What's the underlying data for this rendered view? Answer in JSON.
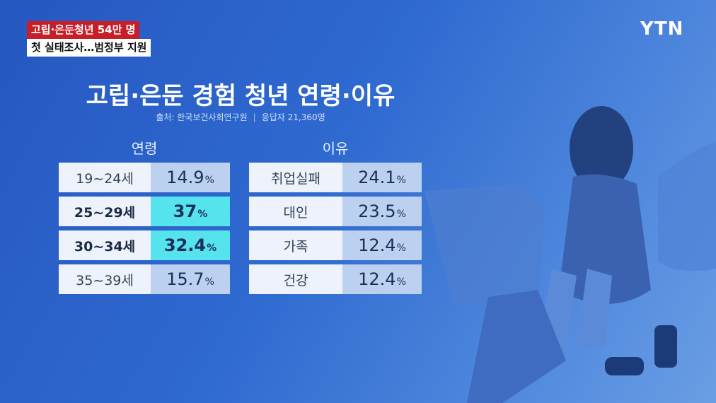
{
  "captions": [
    "고립·은둔청년 54만 명",
    "첫 실태조사…범정부 지원"
  ],
  "logo": "YTN",
  "title": "고립·은둔 경험 청년 연령·이유",
  "source": "출처: 한국보건사회연구원",
  "respondents": "응답자 21,360명",
  "tables": [
    {
      "header": "연령",
      "rows": [
        {
          "label": "19~24세",
          "value": "14.9",
          "unit": "%",
          "highlight": false
        },
        {
          "label": "25~29세",
          "value": "37",
          "unit": "%",
          "highlight": true
        },
        {
          "label": "30~34세",
          "value": "32.4",
          "unit": "%",
          "highlight": true
        },
        {
          "label": "35~39세",
          "value": "15.7",
          "unit": "%",
          "highlight": false
        }
      ]
    },
    {
      "header": "이유",
      "rows": [
        {
          "label": "취업실패",
          "value": "24.1",
          "unit": "%",
          "highlight": false
        },
        {
          "label": "대인",
          "value": "23.5",
          "unit": "%",
          "highlight": false
        },
        {
          "label": "가족",
          "value": "12.4",
          "unit": "%",
          "highlight": false
        },
        {
          "label": "건강",
          "value": "12.4",
          "unit": "%",
          "highlight": false
        }
      ]
    }
  ]
}
